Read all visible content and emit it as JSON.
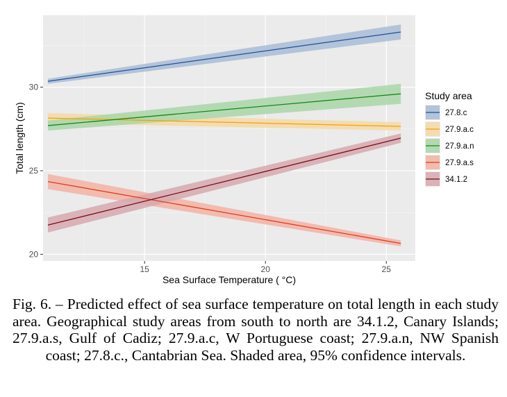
{
  "chart_data": {
    "type": "line",
    "xlabel": "Sea Surface Temperature ( °C)",
    "ylabel": "Total length (cm)",
    "xlim": [
      10.8,
      26.2
    ],
    "ylim": [
      19.6,
      34.3
    ],
    "x_ticks": [
      15,
      20,
      25
    ],
    "y_ticks": [
      20,
      25,
      30
    ],
    "x_tick_labels": [
      "15",
      "20",
      "25"
    ],
    "y_tick_labels": [
      "20",
      "25",
      "30"
    ],
    "grid": true,
    "legend": {
      "title": "Study area",
      "position": "right"
    },
    "x_range": [
      11,
      25.6
    ],
    "series": [
      {
        "name": "27.8.c",
        "color": "#1f4e99",
        "fill": "#a9bcd6",
        "start": 30.35,
        "end": 33.3,
        "ci_start": 0.15,
        "ci_end": 0.45
      },
      {
        "name": "27.9.a.c",
        "color": "#f5a000",
        "fill": "#f6d9a6",
        "start": 28.15,
        "end": 27.65,
        "ci_start": 0.3,
        "ci_end": 0.25
      },
      {
        "name": "27.9.a.n",
        "color": "#108a10",
        "fill": "#a9d6a9",
        "start": 27.7,
        "end": 29.6,
        "ci_start": 0.3,
        "ci_end": 0.6
      },
      {
        "name": "27.9.a.s",
        "color": "#e53a17",
        "fill": "#f2b3a4",
        "start": 24.35,
        "end": 20.65,
        "ci_start": 0.45,
        "ci_end": 0.18
      },
      {
        "name": "34.1.2",
        "color": "#7a0a1a",
        "fill": "#d6a9ae",
        "start": 21.75,
        "end": 26.95,
        "ci_start": 0.45,
        "ci_end": 0.28
      }
    ]
  },
  "caption": "Fig. 6. – Predicted effect of sea surface temperature on total length in each study area. Geographical study areas from south to north are 34.1.2, Canary Islands; 27.9.a.s, Gulf of Cadiz; 27.9.a.c, W Portuguese coast; 27.9.a.n, NW Spanish coast; 27.8.c., Cantabrian Sea. Shaded area, 95% confidence intervals."
}
